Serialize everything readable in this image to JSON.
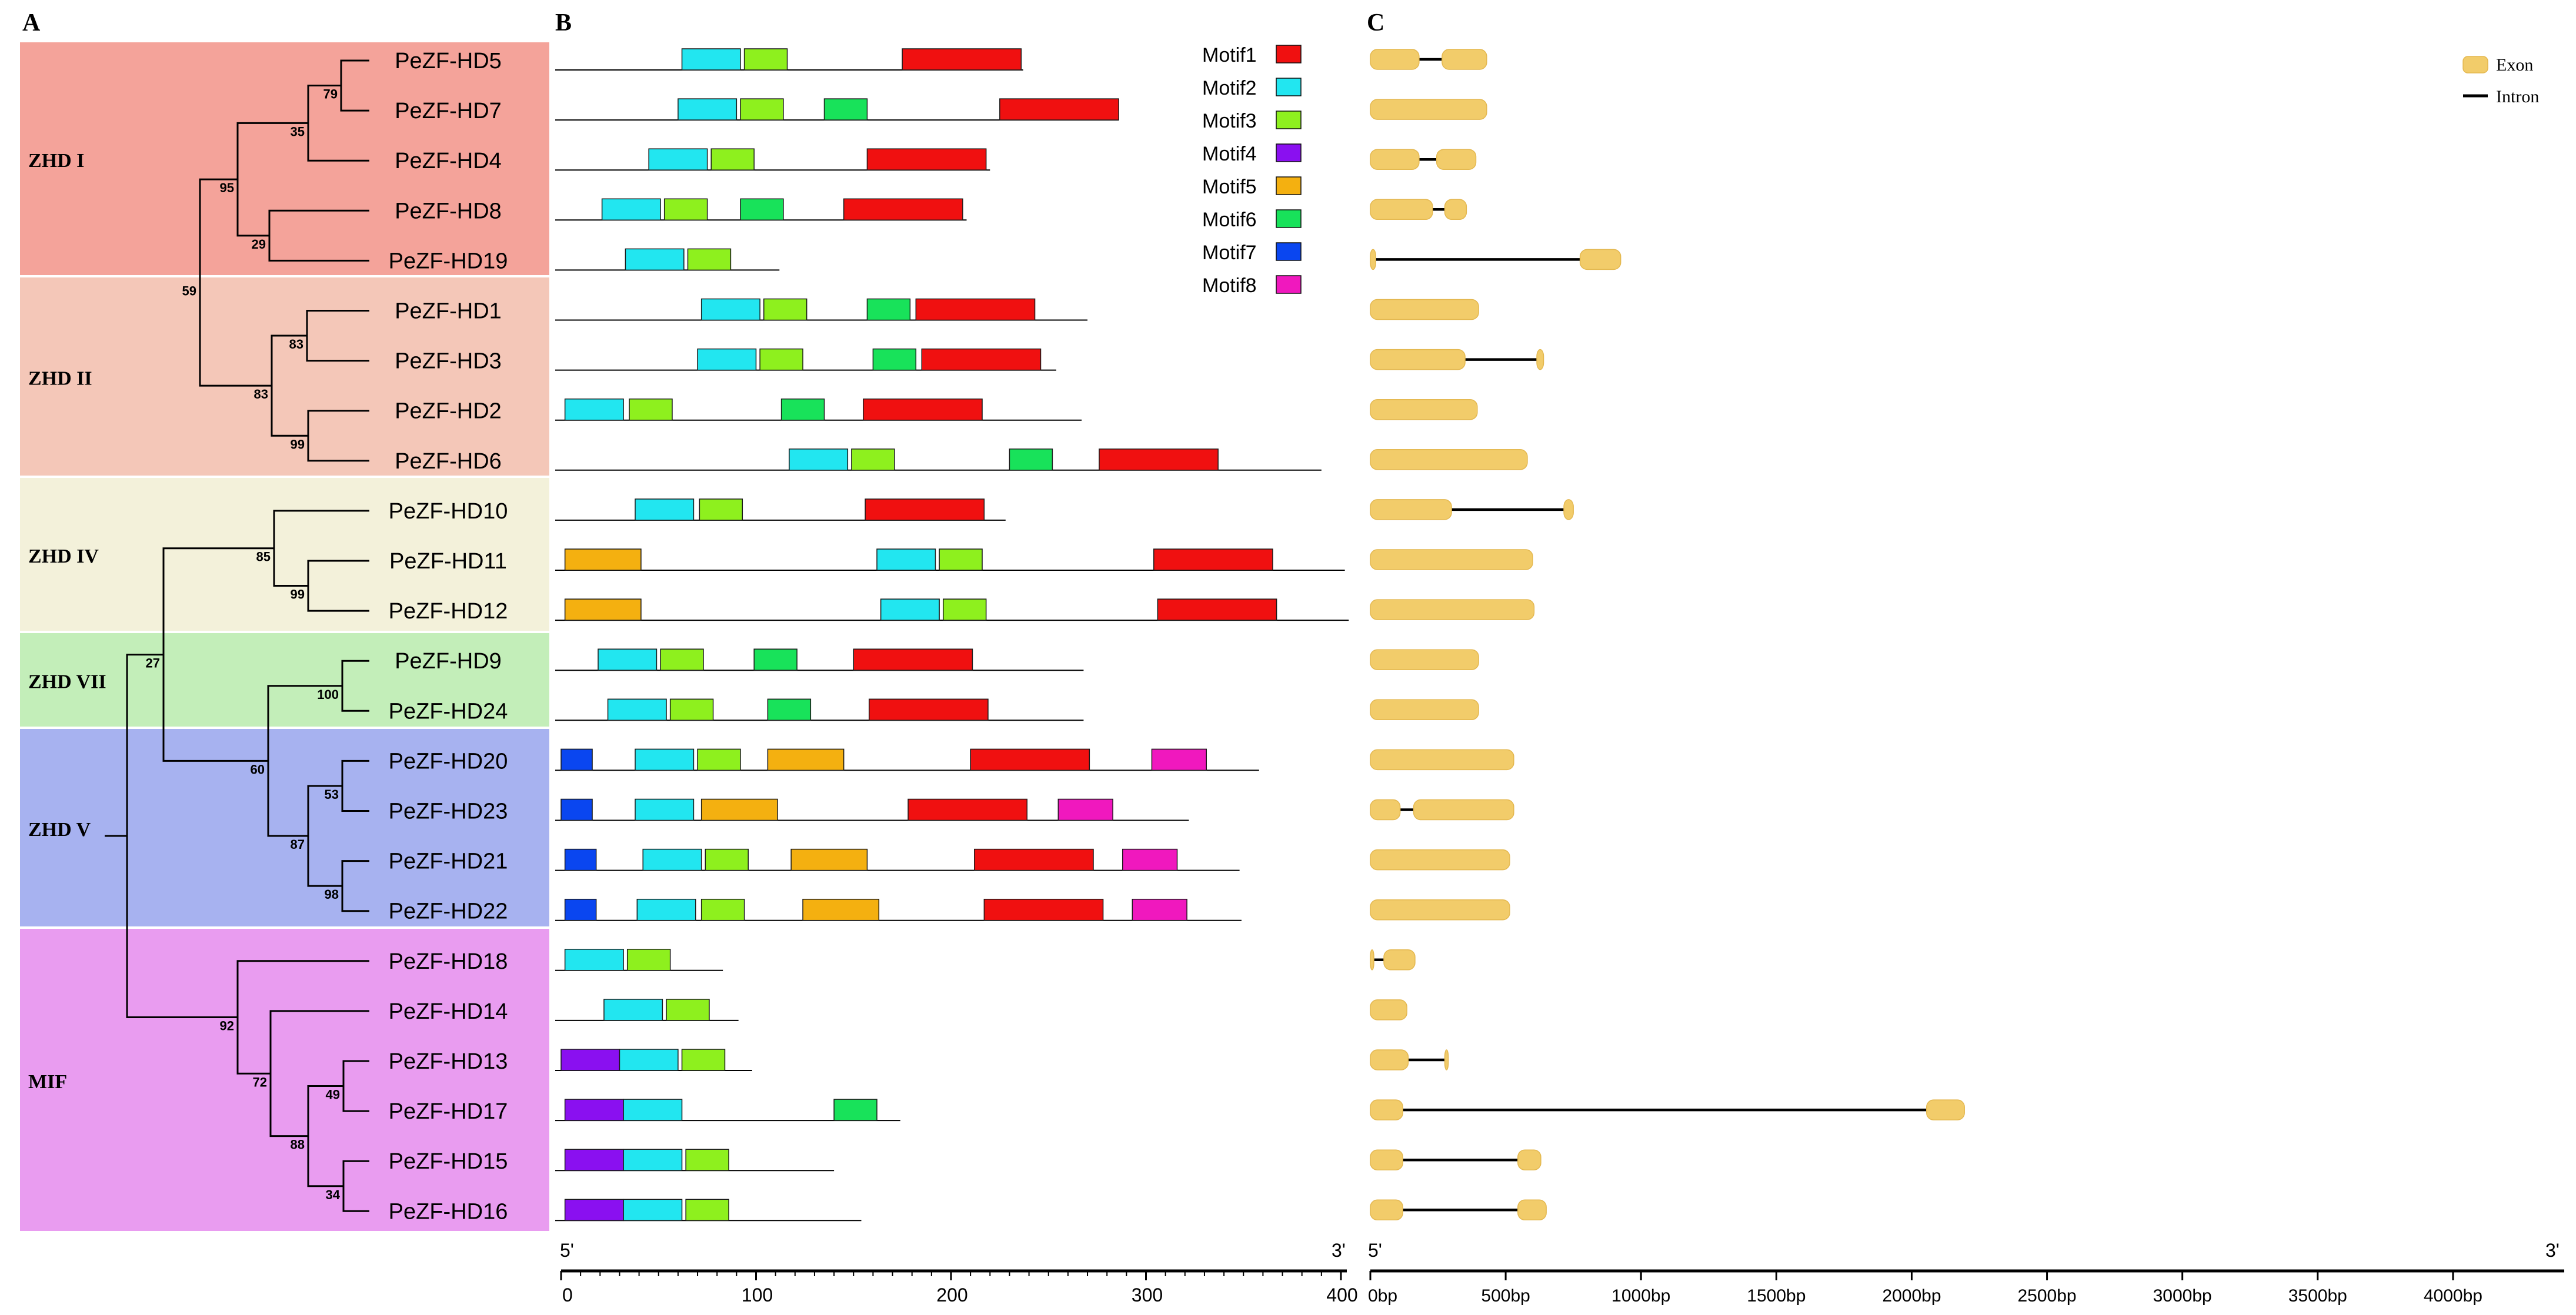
{
  "panels": {
    "a": "A",
    "b": "B",
    "c": "C"
  },
  "clades": [
    {
      "name": "ZHD I",
      "color": "#f4a39a",
      "members": 5
    },
    {
      "name": "ZHD II",
      "color": "#f4c7b8",
      "members": 4
    },
    {
      "name": "ZHD IV",
      "color": "#f3f1da",
      "members": 3
    },
    {
      "name": "ZHD VII",
      "color": "#c3eeb9",
      "members": 2
    },
    {
      "name": "ZHD V",
      "color": "#a7b2f0",
      "members": 4
    },
    {
      "name": "MIF",
      "color": "#e99cf0",
      "members": 6
    }
  ],
  "genes": [
    "PeZF-HD5",
    "PeZF-HD7",
    "PeZF-HD4",
    "PeZF-HD8",
    "PeZF-HD19",
    "PeZF-HD1",
    "PeZF-HD3",
    "PeZF-HD2",
    "PeZF-HD6",
    "PeZF-HD10",
    "PeZF-HD11",
    "PeZF-HD12",
    "PeZF-HD9",
    "PeZF-HD24",
    "PeZF-HD20",
    "PeZF-HD23",
    "PeZF-HD21",
    "PeZF-HD22",
    "PeZF-HD18",
    "PeZF-HD14",
    "PeZF-HD13",
    "PeZF-HD17",
    "PeZF-HD15",
    "PeZF-HD16"
  ],
  "bootstrap": [
    "79",
    "35",
    "95",
    "29",
    "59",
    "83",
    "83",
    "99",
    "27",
    "85",
    "99",
    "100",
    "60",
    "53",
    "87",
    "98",
    "92",
    "72",
    "49",
    "88",
    "34"
  ],
  "motif_legend": [
    {
      "name": "Motif1",
      "color": "#f01010"
    },
    {
      "name": "Motif2",
      "color": "#22e6f0"
    },
    {
      "name": "Motif3",
      "color": "#8ef01e"
    },
    {
      "name": "Motif4",
      "color": "#8a10f0"
    },
    {
      "name": "Motif5",
      "color": "#f4b010"
    },
    {
      "name": "Motif6",
      "color": "#18e25a"
    },
    {
      "name": "Motif7",
      "color": "#0a46f0"
    },
    {
      "name": "Motif8",
      "color": "#f018be"
    }
  ],
  "motif_axis": {
    "ticks": [
      "0",
      "100",
      "200",
      "300",
      "400"
    ],
    "start_label": "5'",
    "end_label": "3'",
    "max": 400
  },
  "proteins": [
    {
      "length": 237,
      "motifs": [
        [
          1,
          62,
          30
        ],
        [
          2,
          94,
          22
        ],
        [
          0,
          175,
          61
        ]
      ]
    },
    {
      "length": 286,
      "motifs": [
        [
          1,
          60,
          30
        ],
        [
          2,
          92,
          22
        ],
        [
          5,
          135,
          22
        ],
        [
          0,
          225,
          61
        ]
      ]
    },
    {
      "length": 220,
      "motifs": [
        [
          1,
          45,
          30
        ],
        [
          2,
          77,
          22
        ],
        [
          0,
          157,
          61
        ]
      ]
    },
    {
      "length": 208,
      "motifs": [
        [
          1,
          21,
          30
        ],
        [
          2,
          53,
          22
        ],
        [
          5,
          92,
          22
        ],
        [
          0,
          145,
          61
        ]
      ]
    },
    {
      "length": 112,
      "motifs": [
        [
          1,
          33,
          30
        ],
        [
          2,
          65,
          22
        ]
      ]
    },
    {
      "length": 270,
      "motifs": [
        [
          1,
          72,
          30
        ],
        [
          2,
          104,
          22
        ],
        [
          5,
          157,
          22
        ],
        [
          0,
          182,
          61
        ]
      ]
    },
    {
      "length": 254,
      "motifs": [
        [
          1,
          70,
          30
        ],
        [
          2,
          102,
          22
        ],
        [
          5,
          160,
          22
        ],
        [
          0,
          185,
          61
        ]
      ]
    },
    {
      "length": 267,
      "motifs": [
        [
          1,
          2,
          30
        ],
        [
          2,
          35,
          22
        ],
        [
          5,
          113,
          22
        ],
        [
          0,
          155,
          61
        ]
      ]
    },
    {
      "length": 390,
      "motifs": [
        [
          1,
          117,
          30
        ],
        [
          2,
          149,
          22
        ],
        [
          5,
          230,
          22
        ],
        [
          0,
          276,
          61
        ]
      ]
    },
    {
      "length": 228,
      "motifs": [
        [
          1,
          38,
          30
        ],
        [
          2,
          71,
          22
        ],
        [
          0,
          156,
          61
        ]
      ]
    },
    {
      "length": 402,
      "motifs": [
        [
          4,
          2,
          39
        ],
        [
          1,
          162,
          30
        ],
        [
          2,
          194,
          22
        ],
        [
          0,
          304,
          61
        ]
      ]
    },
    {
      "length": 404,
      "motifs": [
        [
          4,
          2,
          39
        ],
        [
          1,
          164,
          30
        ],
        [
          2,
          196,
          22
        ],
        [
          0,
          306,
          61
        ]
      ]
    },
    {
      "length": 268,
      "motifs": [
        [
          1,
          19,
          30
        ],
        [
          2,
          51,
          22
        ],
        [
          5,
          99,
          22
        ],
        [
          0,
          150,
          61
        ]
      ]
    },
    {
      "length": 268,
      "motifs": [
        [
          1,
          24,
          30
        ],
        [
          2,
          56,
          22
        ],
        [
          5,
          106,
          22
        ],
        [
          0,
          158,
          61
        ]
      ]
    },
    {
      "length": 358,
      "motifs": [
        [
          6,
          0,
          16
        ],
        [
          1,
          38,
          30
        ],
        [
          2,
          70,
          22
        ],
        [
          4,
          106,
          39
        ],
        [
          0,
          210,
          61
        ],
        [
          7,
          303,
          28
        ]
      ]
    },
    {
      "length": 322,
      "motifs": [
        [
          6,
          0,
          16
        ],
        [
          1,
          38,
          30
        ],
        [
          4,
          72,
          39
        ],
        [
          0,
          178,
          61
        ],
        [
          7,
          255,
          28
        ]
      ]
    },
    {
      "length": 348,
      "motifs": [
        [
          6,
          2,
          16
        ],
        [
          1,
          42,
          30
        ],
        [
          2,
          74,
          22
        ],
        [
          4,
          118,
          39
        ],
        [
          0,
          212,
          61
        ],
        [
          7,
          288,
          28
        ]
      ]
    },
    {
      "length": 349,
      "motifs": [
        [
          6,
          2,
          16
        ],
        [
          1,
          39,
          30
        ],
        [
          2,
          72,
          22
        ],
        [
          4,
          124,
          39
        ],
        [
          0,
          217,
          61
        ],
        [
          7,
          293,
          28
        ]
      ]
    },
    {
      "length": 83,
      "motifs": [
        [
          1,
          2,
          30
        ],
        [
          2,
          34,
          22
        ]
      ]
    },
    {
      "length": 91,
      "motifs": [
        [
          1,
          22,
          30
        ],
        [
          2,
          54,
          22
        ]
      ]
    },
    {
      "length": 98,
      "motifs": [
        [
          3,
          0,
          30
        ],
        [
          1,
          30,
          30
        ],
        [
          2,
          62,
          22
        ]
      ]
    },
    {
      "length": 174,
      "motifs": [
        [
          3,
          2,
          30
        ],
        [
          1,
          32,
          30
        ],
        [
          5,
          140,
          22
        ]
      ]
    },
    {
      "length": 140,
      "motifs": [
        [
          3,
          2,
          30
        ],
        [
          1,
          32,
          30
        ],
        [
          2,
          64,
          22
        ]
      ]
    },
    {
      "length": 154,
      "motifs": [
        [
          3,
          2,
          30
        ],
        [
          1,
          32,
          30
        ],
        [
          2,
          64,
          22
        ]
      ]
    }
  ],
  "gene_legend": {
    "exon": "Exon",
    "intron": "Intron",
    "exon_color": "#f2cc6a"
  },
  "gene_axis": {
    "ticks": [
      "0bp",
      "500bp",
      "1000bp",
      "1500bp",
      "2000bp",
      "2500bp",
      "3000bp",
      "3500bp",
      "4000bp"
    ],
    "start_label": "5'",
    "end_label": "3'",
    "max_bp": 4400
  },
  "gene_structures": [
    [
      [
        0,
        180
      ],
      [
        265,
        430
      ]
    ],
    [
      [
        0,
        430
      ]
    ],
    [
      [
        0,
        180
      ],
      [
        245,
        390
      ]
    ],
    [
      [
        0,
        230
      ],
      [
        275,
        355
      ]
    ],
    [
      [
        0,
        20
      ],
      [
        775,
        925
      ]
    ],
    [
      [
        0,
        400
      ]
    ],
    [
      [
        0,
        350
      ],
      [
        615,
        640
      ]
    ],
    [
      [
        0,
        395
      ]
    ],
    [
      [
        0,
        580
      ]
    ],
    [
      [
        0,
        300
      ],
      [
        715,
        750
      ]
    ],
    [
      [
        0,
        600
      ]
    ],
    [
      [
        0,
        605
      ]
    ],
    [
      [
        0,
        400
      ]
    ],
    [
      [
        0,
        400
      ]
    ],
    [
      [
        0,
        530
      ]
    ],
    [
      [
        0,
        110
      ],
      [
        160,
        530
      ]
    ],
    [
      [
        0,
        515
      ]
    ],
    [
      [
        0,
        515
      ]
    ],
    [
      [
        0,
        5
      ],
      [
        50,
        165
      ]
    ],
    [
      [
        0,
        135
      ]
    ],
    [
      [
        0,
        140
      ],
      [
        275,
        285
      ]
    ],
    [
      [
        0,
        120
      ],
      [
        2055,
        2195
      ]
    ],
    [
      [
        0,
        120
      ],
      [
        545,
        630
      ]
    ],
    [
      [
        0,
        120
      ],
      [
        545,
        650
      ]
    ]
  ]
}
